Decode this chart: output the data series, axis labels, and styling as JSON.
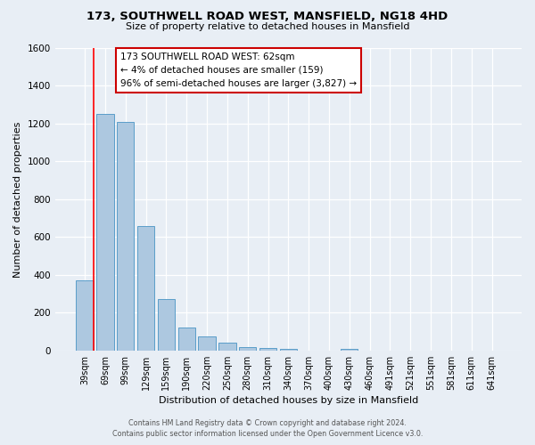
{
  "title_line1": "173, SOUTHWELL ROAD WEST, MANSFIELD, NG18 4HD",
  "title_line2": "Size of property relative to detached houses in Mansfield",
  "xlabel": "Distribution of detached houses by size in Mansfield",
  "ylabel": "Number of detached properties",
  "bar_labels": [
    "39sqm",
    "69sqm",
    "99sqm",
    "129sqm",
    "159sqm",
    "190sqm",
    "220sqm",
    "250sqm",
    "280sqm",
    "310sqm",
    "340sqm",
    "370sqm",
    "400sqm",
    "430sqm",
    "460sqm",
    "491sqm",
    "521sqm",
    "551sqm",
    "581sqm",
    "611sqm",
    "641sqm"
  ],
  "bar_values": [
    370,
    1250,
    1210,
    660,
    270,
    120,
    75,
    40,
    20,
    15,
    10,
    0,
    0,
    10,
    0,
    0,
    0,
    0,
    0,
    0,
    0
  ],
  "bar_color": "#adc8e0",
  "bar_edge_color": "#5a9ec9",
  "background_color": "#e8eef5",
  "ylim": [
    0,
    1600
  ],
  "yticks": [
    0,
    200,
    400,
    600,
    800,
    1000,
    1200,
    1400,
    1600
  ],
  "marker_line_color": "#ff0000",
  "annotation_title": "173 SOUTHWELL ROAD WEST: 62sqm",
  "annotation_line1": "← 4% of detached houses are smaller (159)",
  "annotation_line2": "96% of semi-detached houses are larger (3,827) →",
  "annotation_box_color": "#ffffff",
  "annotation_border_color": "#cc0000",
  "footnote_line1": "Contains HM Land Registry data © Crown copyright and database right 2024.",
  "footnote_line2": "Contains public sector information licensed under the Open Government Licence v3.0."
}
